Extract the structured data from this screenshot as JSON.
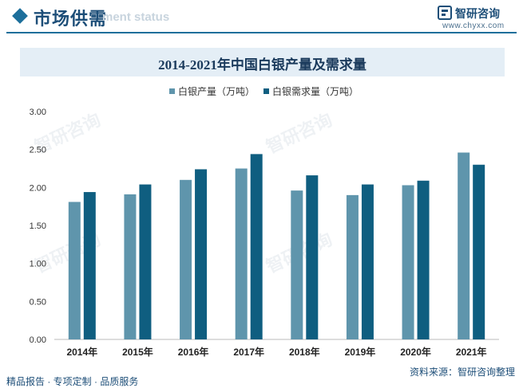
{
  "header": {
    "title": "市场供需",
    "subtitle": "ment status"
  },
  "brand": {
    "name": "智研咨询",
    "url": "www.chyxx.com"
  },
  "watermark": "智研咨询",
  "footer": {
    "left": "精品报告 · 专项定制 · 品质服务",
    "source": "资料来源：智研咨询整理"
  },
  "colors": {
    "production": "#5f95ac",
    "demand": "#0f5e80",
    "accent": "#1d6f9b"
  },
  "chart_data": {
    "type": "bar",
    "title": "2014-2021年中国白银产量及需求量",
    "categories": [
      "2014年",
      "2015年",
      "2016年",
      "2017年",
      "2018年",
      "2019年",
      "2020年",
      "2021年"
    ],
    "series": [
      {
        "name": "白银产量（万吨）",
        "values": [
          1.81,
          1.91,
          2.1,
          2.25,
          1.96,
          1.9,
          2.03,
          2.46
        ]
      },
      {
        "name": "白银需求量（万吨）",
        "values": [
          1.94,
          2.04,
          2.24,
          2.44,
          2.16,
          2.04,
          2.09,
          2.3
        ]
      }
    ],
    "yticks": [
      "0.00",
      "0.50",
      "1.00",
      "1.50",
      "2.00",
      "2.50",
      "3.00"
    ],
    "ylim": [
      0,
      3
    ],
    "legend": "top-center",
    "grid": false
  }
}
